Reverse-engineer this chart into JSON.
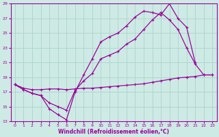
{
  "bg_color": "#ceeae4",
  "grid_color": "#aad4cc",
  "line_color": "#990099",
  "xlabel": "Windchill (Refroidissement éolien,°C)",
  "xlim": [
    -0.5,
    23.5
  ],
  "ylim": [
    13,
    29
  ],
  "yticks": [
    13,
    15,
    17,
    19,
    21,
    23,
    25,
    27,
    29
  ],
  "xticks": [
    0,
    1,
    2,
    3,
    4,
    5,
    6,
    7,
    8,
    9,
    10,
    11,
    12,
    13,
    14,
    15,
    16,
    17,
    18,
    19,
    20,
    21,
    22,
    23
  ],
  "curve1": {
    "x": [
      0,
      1,
      2,
      3,
      4,
      5,
      6,
      7,
      8,
      9,
      10,
      11,
      12,
      13,
      14,
      15,
      16,
      17,
      18,
      19,
      20,
      21
    ],
    "y": [
      18.0,
      17.3,
      16.8,
      16.5,
      14.7,
      13.9,
      13.2,
      17.0,
      19.3,
      21.5,
      23.8,
      24.5,
      25.0,
      26.0,
      27.2,
      28.0,
      27.8,
      27.5,
      29.0,
      27.0,
      25.8,
      21.0
    ]
  },
  "curve2": {
    "x": [
      0,
      1,
      2,
      3,
      4,
      5,
      6,
      7,
      8,
      9,
      10,
      11,
      12,
      13,
      14,
      15,
      16,
      17,
      18,
      19,
      20,
      21,
      22,
      23
    ],
    "y": [
      18.0,
      17.3,
      16.8,
      16.5,
      15.5,
      15.0,
      14.5,
      17.2,
      18.5,
      19.5,
      21.5,
      22.0,
      22.5,
      23.5,
      24.2,
      25.5,
      26.8,
      27.8,
      26.8,
      25.5,
      23.0,
      20.8,
      19.3,
      19.3
    ]
  },
  "curve3": {
    "x": [
      0,
      1,
      2,
      3,
      4,
      5,
      6,
      7,
      8,
      9,
      10,
      11,
      12,
      13,
      14,
      15,
      16,
      17,
      18,
      19,
      20,
      21,
      22,
      23
    ],
    "y": [
      18.0,
      17.5,
      17.3,
      17.3,
      17.4,
      17.4,
      17.3,
      17.4,
      17.5,
      17.5,
      17.6,
      17.7,
      17.8,
      17.9,
      18.0,
      18.1,
      18.3,
      18.5,
      18.7,
      18.9,
      19.0,
      19.1,
      19.3,
      19.3
    ]
  }
}
